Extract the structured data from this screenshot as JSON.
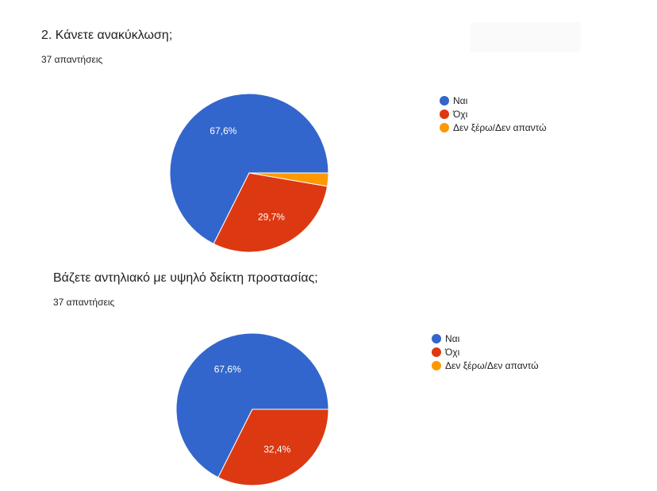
{
  "chart_data": [
    {
      "type": "pie",
      "title": "2. Κάνετε ανακύκλωση;",
      "subtitle": "37 απαντήσεις",
      "categories": [
        "Ναι",
        "Όχι",
        "Δεν ξέρω/Δεν απαντώ"
      ],
      "values": [
        67.6,
        29.7,
        2.7
      ],
      "data_labels": [
        "67,6%",
        "29,7%",
        ""
      ],
      "colors": [
        "#3366cc",
        "#dc3912",
        "#ff9900"
      ],
      "legend": "right"
    },
    {
      "type": "pie",
      "title": "Βάζετε αντηλιακό με υψηλό δείκτη προστασίας;",
      "subtitle": "37 απαντήσεις",
      "categories": [
        "Ναι",
        "Όχι",
        "Δεν ξέρω/Δεν απαντώ"
      ],
      "values": [
        67.6,
        32.4,
        0
      ],
      "data_labels": [
        "67,6%",
        "32,4%",
        ""
      ],
      "colors": [
        "#3366cc",
        "#dc3912",
        "#ff9900"
      ],
      "legend": "right"
    }
  ]
}
